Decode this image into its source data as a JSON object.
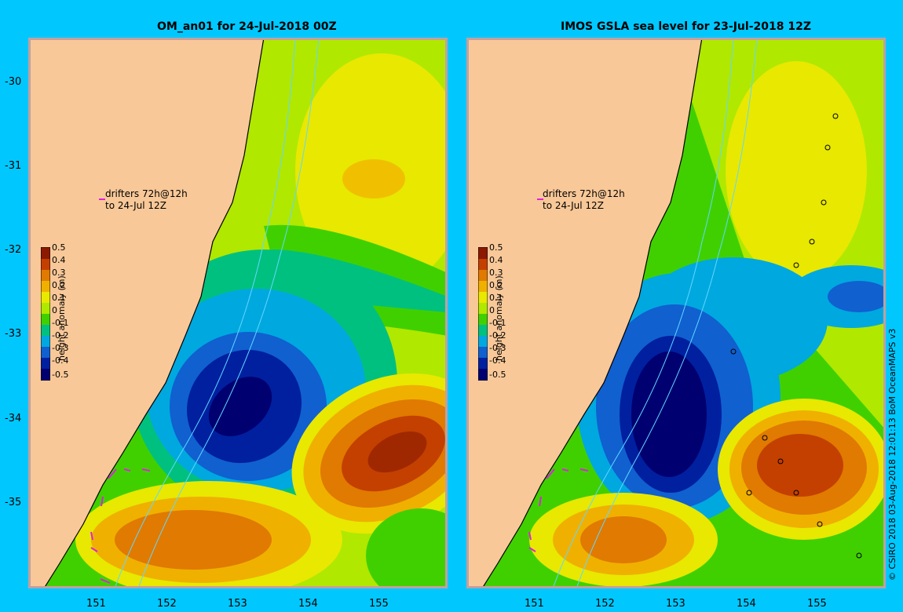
{
  "left_panel": {
    "title": "OM_an01 for 24-Jul-2018 00Z"
  },
  "right_panel": {
    "title": "IMOS GSLA sea level  for 23-Jul-2018 12Z"
  },
  "latitude_ticks": [
    "-30",
    "-31",
    "-32",
    "-33",
    "-34",
    "-35"
  ],
  "longitude_ticks": [
    "151",
    "152",
    "153",
    "154",
    "155"
  ],
  "colorbar": {
    "title": "height anomaly (m)",
    "tick_labels": [
      "0.5",
      "0.4",
      "0.3",
      "0.2",
      "0.1",
      "0",
      "-0.1",
      "-0.2",
      "-0.3",
      "-0.4",
      "-0.5"
    ],
    "colors": [
      "#8b1a00",
      "#c44000",
      "#e07a00",
      "#f0b000",
      "#e8e800",
      "#b0e800",
      "#40d000",
      "#00c080",
      "#00a8e0",
      "#1060d0",
      "#0020a0",
      "#000070"
    ]
  },
  "drifter_note": {
    "line1": "drifters 72h@12h",
    "line2": "to 24-Jul 12Z"
  },
  "credit": "© CSIRO 2018   03-Aug-2018 12:01:13 BoM OceanMAPS v3",
  "colors": {
    "background": "#00c8ff",
    "land": "#f8c898",
    "drifter": "#e020e0",
    "isobath": "#60d8ff"
  }
}
